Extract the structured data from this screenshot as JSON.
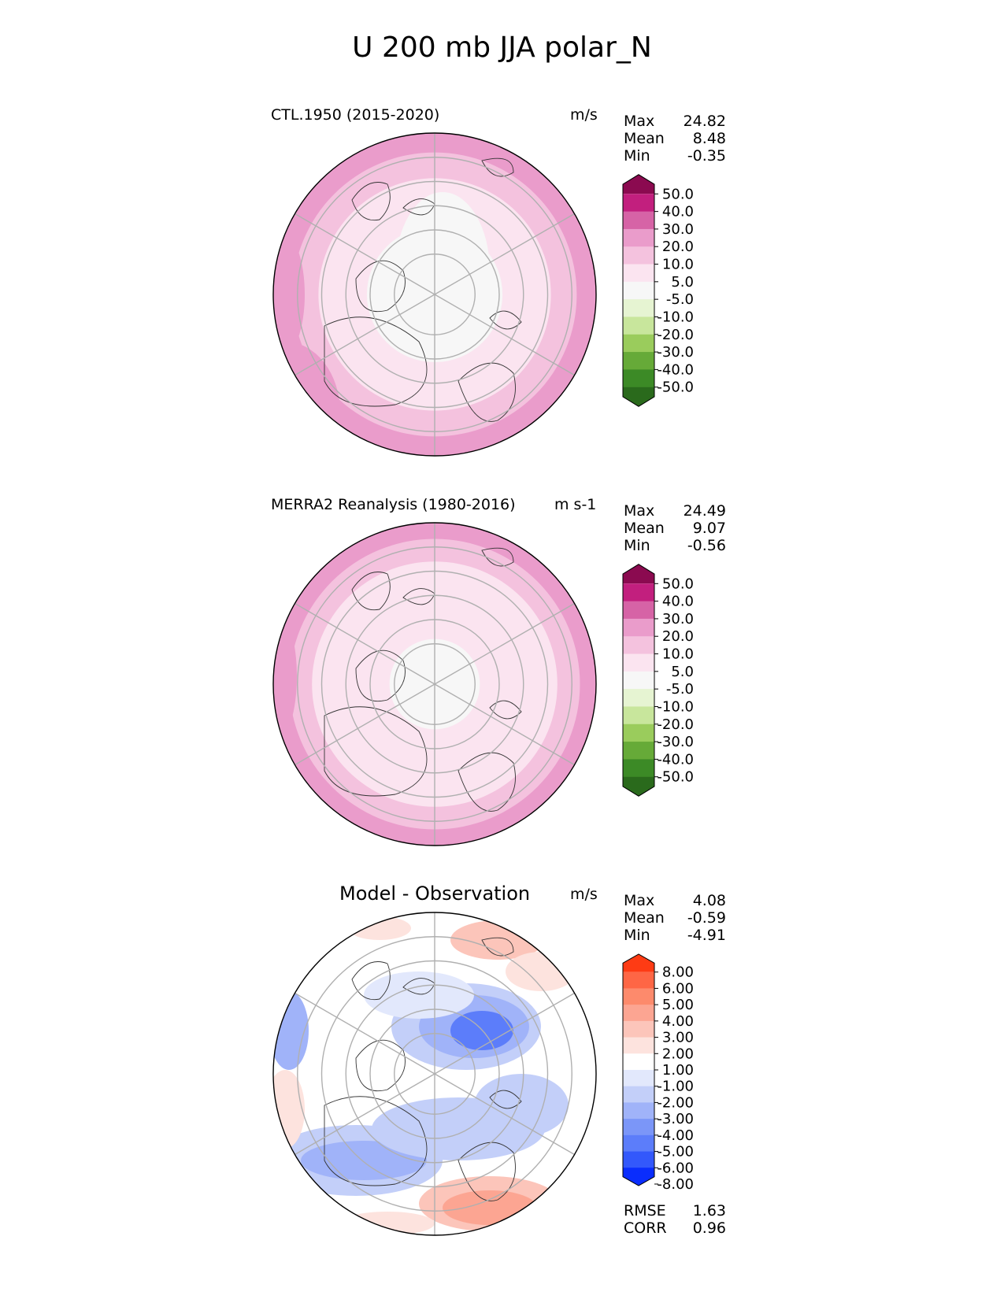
{
  "figure": {
    "title": "U 200 mb JJA polar_N"
  },
  "colors": {
    "pink_scale": [
      "#2a6a1c",
      "#3c8a26",
      "#66aa38",
      "#9acc5c",
      "#c8e69c",
      "#e6f4d2",
      "#f7f7f7",
      "#fbe4f0",
      "#f4c2de",
      "#ea9ccb",
      "#d663a6",
      "#c21f7e",
      "#8b0a50"
    ],
    "diff_scale": [
      "#0a2dfd",
      "#3358fb",
      "#5c7dfa",
      "#7b96f8",
      "#a0b3f9",
      "#c3cff9",
      "#e2e8fc",
      "#ffffff",
      "#fde3de",
      "#fcc5ba",
      "#fca592",
      "#fd8a6c",
      "#fe6645",
      "#fe3b14"
    ]
  },
  "chart_data": [
    {
      "type": "heatmap",
      "title": "CTL.1950 (2015-2020)",
      "units": "m/s",
      "projection": "north polar stereographic",
      "stats": {
        "max_label": "Max",
        "max": "24.82",
        "mean_label": "Mean",
        "mean": "8.48",
        "min_label": "Min",
        "min": "-0.35"
      },
      "colorbar": {
        "levels": [
          "50.0",
          "40.0",
          "30.0",
          "20.0",
          "10.0",
          "5.0",
          "-5.0",
          "-10.0",
          "-20.0",
          "-30.0",
          "-40.0",
          "-50.0"
        ]
      },
      "field": {
        "rings": [
          {
            "r": 1.0,
            "value": 25
          },
          {
            "r": 0.88,
            "value": 15
          },
          {
            "r": 0.72,
            "value": 7
          },
          {
            "r": 0.42,
            "value": 0
          }
        ]
      }
    },
    {
      "type": "heatmap",
      "title": "MERRA2 Reanalysis (1980-2016)",
      "units": "m s-1",
      "projection": "north polar stereographic",
      "stats": {
        "max_label": "Max",
        "max": "24.49",
        "mean_label": "Mean",
        "mean": "9.07",
        "min_label": "Min",
        "min": "-0.56"
      },
      "colorbar": {
        "levels": [
          "50.0",
          "40.0",
          "30.0",
          "20.0",
          "10.0",
          "5.0",
          "-5.0",
          "-10.0",
          "-20.0",
          "-30.0",
          "-40.0",
          "-50.0"
        ]
      },
      "field": {
        "rings": [
          {
            "r": 1.0,
            "value": 25
          },
          {
            "r": 0.9,
            "value": 15
          },
          {
            "r": 0.76,
            "value": 7
          },
          {
            "r": 0.28,
            "value": 0
          }
        ]
      }
    },
    {
      "type": "heatmap",
      "title": "Model - Observation",
      "units": "m/s",
      "projection": "north polar stereographic",
      "stats": {
        "max_label": "Max",
        "max": "4.08",
        "mean_label": "Mean",
        "mean": "-0.59",
        "min_label": "Min",
        "min": "-4.91"
      },
      "colorbar": {
        "levels": [
          "8.00",
          "6.00",
          "5.00",
          "4.00",
          "3.00",
          "2.00",
          "1.00",
          "-1.00",
          "-2.00",
          "-3.00",
          "-4.00",
          "-5.00",
          "-6.00",
          "-8.00"
        ]
      },
      "extra_stats": {
        "rmse_label": "RMSE",
        "rmse": "1.63",
        "corr_label": "CORR",
        "corr": "0.96"
      }
    }
  ]
}
